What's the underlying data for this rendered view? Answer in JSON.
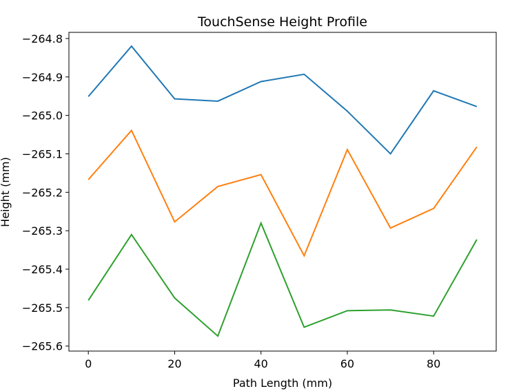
{
  "chart_data": {
    "type": "line",
    "title": "TouchSense Height Profile",
    "xlabel": "Path Length (mm)",
    "ylabel": "Height (mm)",
    "x": [
      0,
      10,
      20,
      30,
      40,
      50,
      60,
      70,
      80,
      90
    ],
    "xlim": [
      -4.5,
      94.5
    ],
    "ylim": [
      -265.613,
      -264.784
    ],
    "xticks": [
      0,
      20,
      40,
      60,
      80
    ],
    "yticks": [
      -264.8,
      -264.9,
      -265.0,
      -265.1,
      -265.2,
      -265.3,
      -265.4,
      -265.5,
      -265.6
    ],
    "ytick_labels": [
      "−264.8",
      "−264.9",
      "−265.0",
      "−265.1",
      "−265.2",
      "−265.3",
      "−265.4",
      "−265.5",
      "−265.6"
    ],
    "grid": false,
    "series": [
      {
        "color": "#1f77b4",
        "values": [
          -264.951,
          -264.82,
          -264.957,
          -264.963,
          -264.912,
          -264.893,
          -264.989,
          -265.1,
          -264.936,
          -264.977
        ]
      },
      {
        "color": "#ff7f0e",
        "values": [
          -265.167,
          -265.039,
          -265.277,
          -265.185,
          -265.154,
          -265.365,
          -265.089,
          -265.293,
          -265.242,
          -265.082
        ]
      },
      {
        "color": "#2ca02c",
        "values": [
          -265.481,
          -265.31,
          -265.475,
          -265.574,
          -265.28,
          -265.551,
          -265.508,
          -265.506,
          -265.522,
          -265.323
        ]
      }
    ]
  }
}
